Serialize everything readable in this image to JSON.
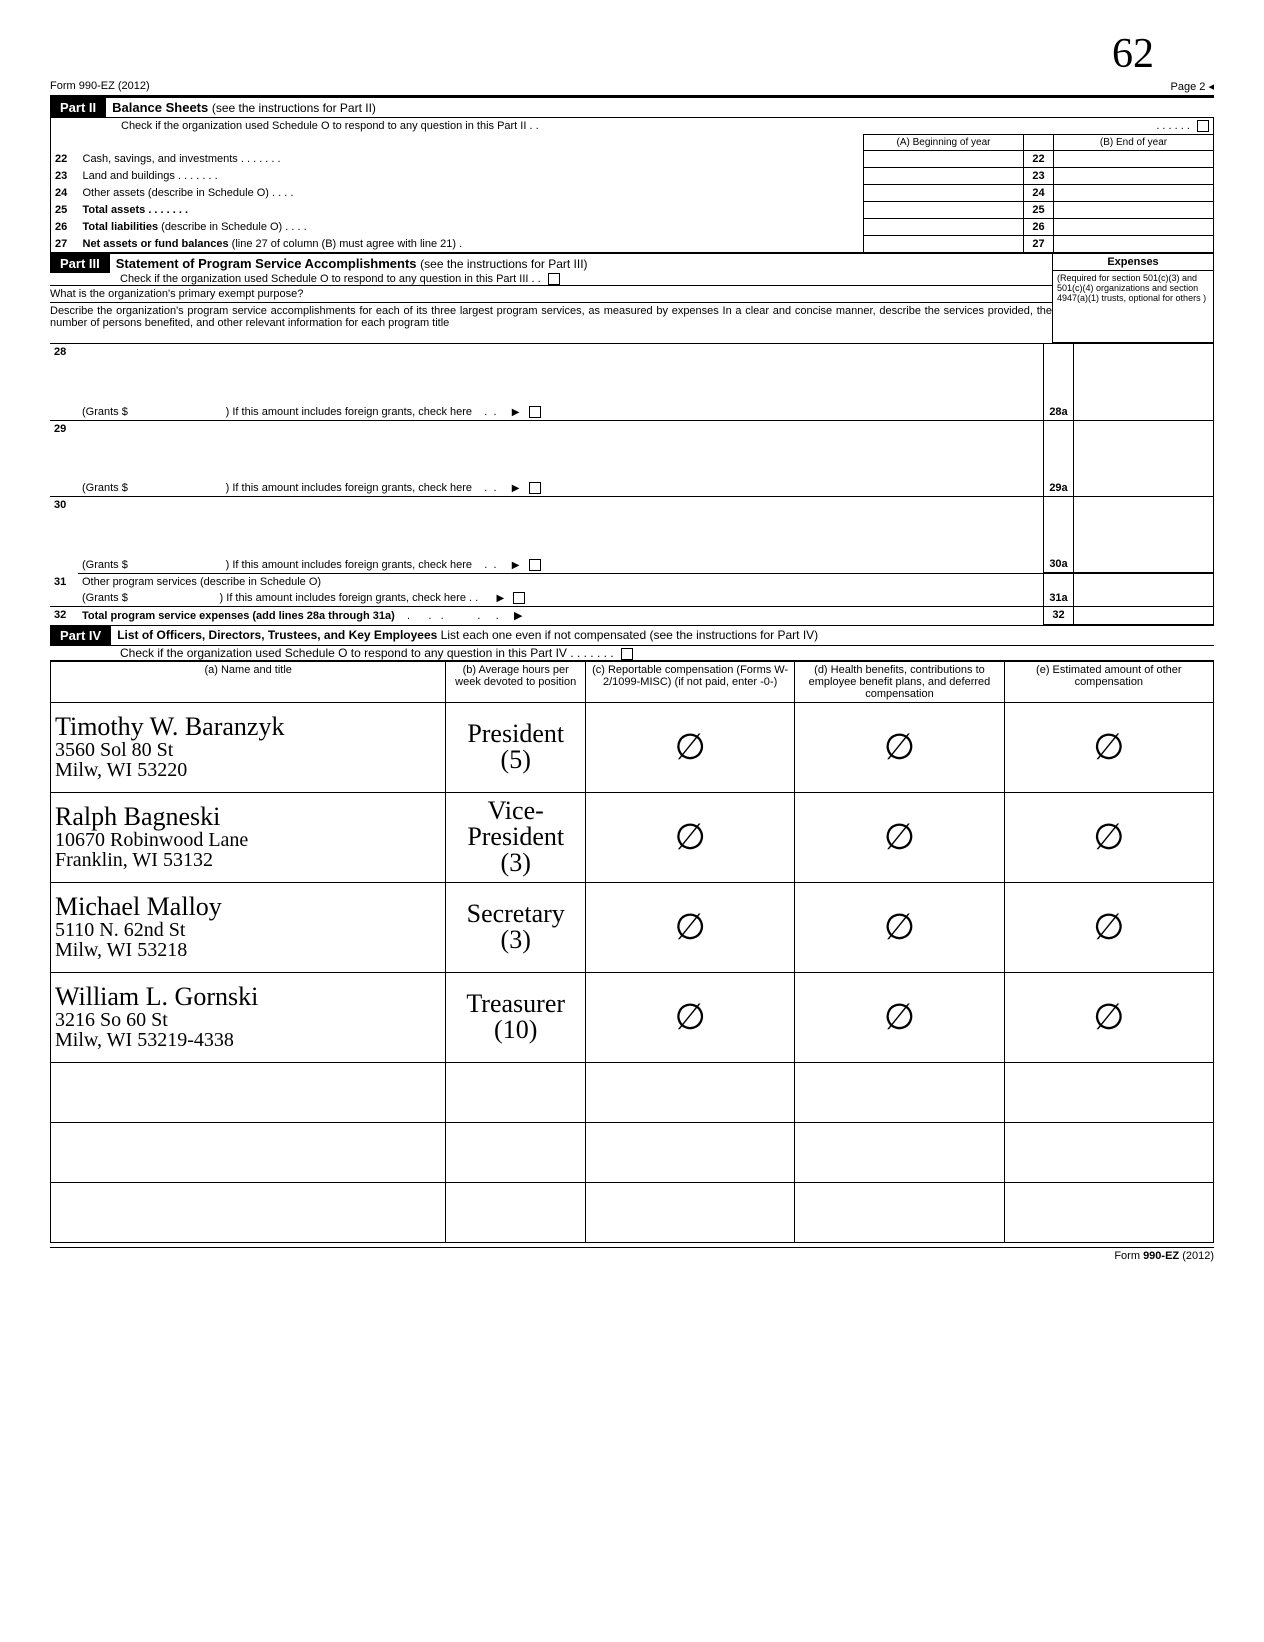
{
  "topRight": "62",
  "formLine": "Form 990-EZ (2012)",
  "pageLabel": "Page 2",
  "part2": {
    "label": "Part II",
    "title": "Balance Sheets",
    "sub": "(see the instructions for Part II)",
    "check": "Check if the organization used Schedule O to respond to any question in this Part II .  .",
    "colA": "(A) Beginning of year",
    "colB": "(B) End of year",
    "rows": [
      {
        "n": "22",
        "label": "Cash, savings, and investments    .  .  .          .  .                      .               .",
        "box": "22"
      },
      {
        "n": "23",
        "label": "Land and buildings        .   .   .   .               .                           .          .",
        "box": "23"
      },
      {
        "n": "24",
        "label": "Other assets (describe in Schedule O)   .   .                        .                    .",
        "box": "24"
      },
      {
        "n": "25",
        "label": "Total assets              .   .   .                     .   .   .   .",
        "box": "25",
        "bold": true
      },
      {
        "n": "26",
        "label": "Total liabilities (describe in Schedule O)                  .                         .     .    .",
        "box": "26",
        "boldPrefix": "Total liabilities"
      },
      {
        "n": "27",
        "label": "Net assets or fund balances (line 27 of column (B) must agree with line 21)        .",
        "box": "27",
        "boldPrefix": "Net assets or fund balances"
      }
    ]
  },
  "part3": {
    "label": "Part III",
    "title": "Statement of Program Service Accomplishments",
    "sub": "(see the instructions for Part III)",
    "check": "Check if the organization used Schedule O to respond to any question in this Part III    .   .",
    "q": "What is the organization's primary exempt purpose?",
    "desc": "Describe the organization's program service accomplishments for each of its three largest program services, as measured by expenses  In a clear and concise manner, describe the services provided, the number of persons benefited, and other relevant information for each program title",
    "expHeader": "Expenses",
    "expNote": "(Required for section 501(c)(3) and 501(c)(4) organizations and section 4947(a)(1) trusts, optional for others )",
    "grants": "(Grants $",
    "foreign": ")  If this amount includes foreign grants, check here",
    "rows": [
      {
        "n": "28",
        "box": "28a"
      },
      {
        "n": "29",
        "box": "29a"
      },
      {
        "n": "30",
        "box": "30a"
      }
    ],
    "line31": "Other program services (describe in Schedule O)",
    "line31n": "31",
    "line31box": "31a",
    "line32": "Total program service expenses (add lines 28a through 31a)",
    "line32n": "32",
    "line32box": "32"
  },
  "part4": {
    "label": "Part IV",
    "title": "List of Officers, Directors, Trustees, and Key Employees",
    "sub": "List each one even if not compensated (see the instructions for Part IV)",
    "check": "Check if the organization used Schedule O to respond to any question in this Part IV      .    .    .    .    .    .    .",
    "headers": {
      "a": "(a) Name and title",
      "b": "(b) Average hours per week devoted to position",
      "c": "(c) Reportable compensation (Forms W-2/1099-MISC) (if not paid, enter -0-)",
      "d": "(d) Health benefits, contributions to employee benefit plans, and deferred compensation",
      "e": "(e) Estimated amount of other compensation"
    },
    "officers": [
      {
        "name": "Timothy W. Baranzyk",
        "addr": "3560 Sol 80 St\nMilw, WI 53220",
        "title": "President",
        "hours": "(5)",
        "c": "∅",
        "d": "∅",
        "e": "∅"
      },
      {
        "name": "Ralph Bagneski",
        "addr": "10670 Robinwood Lane\nFranklin, WI 53132",
        "title": "Vice-President",
        "hours": "(3)",
        "c": "∅",
        "d": "∅",
        "e": "∅"
      },
      {
        "name": "Michael Malloy",
        "addr": "5110 N. 62nd St\nMilw, WI 53218",
        "title": "Secretary",
        "hours": "(3)",
        "c": "∅",
        "d": "∅",
        "e": "∅"
      },
      {
        "name": "William L. Gornski",
        "addr": "3216 So 60 St\nMilw, WI 53219-4338",
        "title": "Treasurer",
        "hours": "(10)",
        "c": "∅",
        "d": "∅",
        "e": "∅"
      }
    ]
  },
  "footer": "Form 990-EZ  (2012)"
}
